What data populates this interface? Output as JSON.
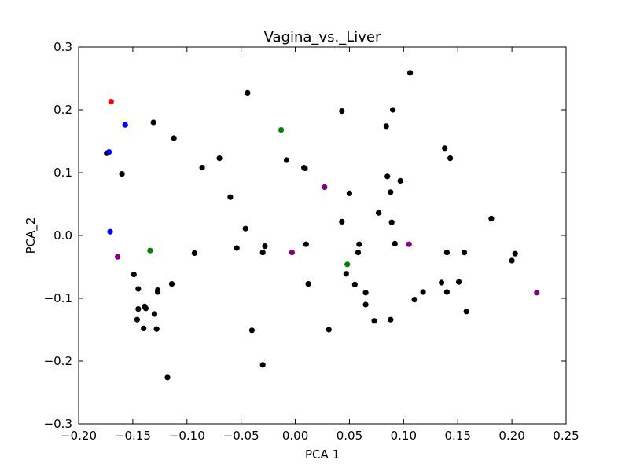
{
  "chart_data": {
    "type": "scatter",
    "title": "Vagina_vs._Liver",
    "xlabel": "PCA 1",
    "ylabel": "PCA_2",
    "xlim": [
      -0.2,
      0.25
    ],
    "ylim": [
      -0.3,
      0.3
    ],
    "xticks": [
      -0.2,
      -0.15,
      -0.1,
      -0.05,
      0.0,
      0.05,
      0.1,
      0.15,
      0.2,
      0.25
    ],
    "xtick_labels": [
      "−0.20",
      "−0.15",
      "−0.10",
      "−0.05",
      "0.00",
      "0.05",
      "0.10",
      "0.15",
      "0.20",
      "0.25"
    ],
    "yticks": [
      -0.3,
      -0.2,
      -0.1,
      0.0,
      0.1,
      0.2,
      0.3
    ],
    "ytick_labels": [
      "−0.3",
      "−0.2",
      "−0.1",
      "0.0",
      "0.1",
      "0.2",
      "0.3"
    ],
    "grid": false,
    "series": [
      {
        "color": "#000000",
        "points": [
          [
            -0.174,
            0.131
          ],
          [
            -0.16,
            0.098
          ],
          [
            -0.131,
            0.18
          ],
          [
            -0.112,
            0.155
          ],
          [
            -0.086,
            0.108
          ],
          [
            -0.07,
            0.123
          ],
          [
            -0.06,
            0.061
          ],
          [
            -0.044,
            0.227
          ],
          [
            -0.046,
            0.011
          ],
          [
            -0.054,
            -0.02
          ],
          [
            -0.028,
            -0.017
          ],
          [
            -0.03,
            -0.027
          ],
          [
            -0.008,
            0.12
          ],
          [
            0.008,
            0.108
          ],
          [
            0.009,
            0.107
          ],
          [
            0.01,
            -0.014
          ],
          [
            0.012,
            -0.077
          ],
          [
            -0.04,
            -0.151
          ],
          [
            -0.03,
            -0.206
          ],
          [
            0.031,
            -0.15
          ],
          [
            0.043,
            0.198
          ],
          [
            0.05,
            0.067
          ],
          [
            0.043,
            0.022
          ],
          [
            0.059,
            -0.014
          ],
          [
            0.058,
            -0.027
          ],
          [
            0.047,
            -0.061
          ],
          [
            0.055,
            -0.078
          ],
          [
            0.065,
            -0.091
          ],
          [
            0.065,
            -0.11
          ],
          [
            0.073,
            -0.136
          ],
          [
            0.084,
            0.174
          ],
          [
            0.09,
            0.2
          ],
          [
            0.085,
            0.094
          ],
          [
            0.097,
            0.087
          ],
          [
            0.088,
            0.069
          ],
          [
            0.077,
            0.036
          ],
          [
            0.089,
            0.021
          ],
          [
            0.092,
            -0.013
          ],
          [
            0.088,
            -0.134
          ],
          [
            0.106,
            0.259
          ],
          [
            0.11,
            -0.102
          ],
          [
            0.118,
            -0.09
          ],
          [
            0.138,
            0.139
          ],
          [
            0.143,
            0.123
          ],
          [
            0.14,
            -0.027
          ],
          [
            0.156,
            -0.027
          ],
          [
            0.135,
            -0.075
          ],
          [
            0.14,
            -0.09
          ],
          [
            0.151,
            -0.074
          ],
          [
            0.158,
            -0.121
          ],
          [
            0.181,
            0.027
          ],
          [
            0.203,
            -0.029
          ],
          [
            0.2,
            -0.04
          ],
          [
            -0.093,
            -0.028
          ],
          [
            -0.114,
            -0.077
          ],
          [
            -0.127,
            -0.087
          ],
          [
            -0.127,
            -0.09
          ],
          [
            -0.149,
            -0.062
          ],
          [
            -0.145,
            -0.085
          ],
          [
            -0.145,
            -0.117
          ],
          [
            -0.139,
            -0.113
          ],
          [
            -0.138,
            -0.116
          ],
          [
            -0.13,
            -0.125
          ],
          [
            -0.146,
            -0.134
          ],
          [
            -0.14,
            -0.148
          ],
          [
            -0.128,
            -0.149
          ],
          [
            -0.118,
            -0.226
          ]
        ]
      },
      {
        "color": "#ff0000",
        "points": [
          [
            -0.17,
            0.213
          ]
        ]
      },
      {
        "color": "#0000ff",
        "points": [
          [
            -0.157,
            0.176
          ],
          [
            -0.172,
            0.133
          ],
          [
            -0.171,
            0.006
          ]
        ]
      },
      {
        "color": "#008000",
        "points": [
          [
            -0.013,
            0.168
          ],
          [
            -0.134,
            -0.024
          ],
          [
            0.048,
            -0.046
          ]
        ]
      },
      {
        "color": "#800080",
        "points": [
          [
            0.027,
            0.077
          ],
          [
            -0.003,
            -0.027
          ],
          [
            0.105,
            -0.014
          ],
          [
            -0.164,
            -0.034
          ],
          [
            0.223,
            -0.091
          ]
        ]
      }
    ]
  }
}
